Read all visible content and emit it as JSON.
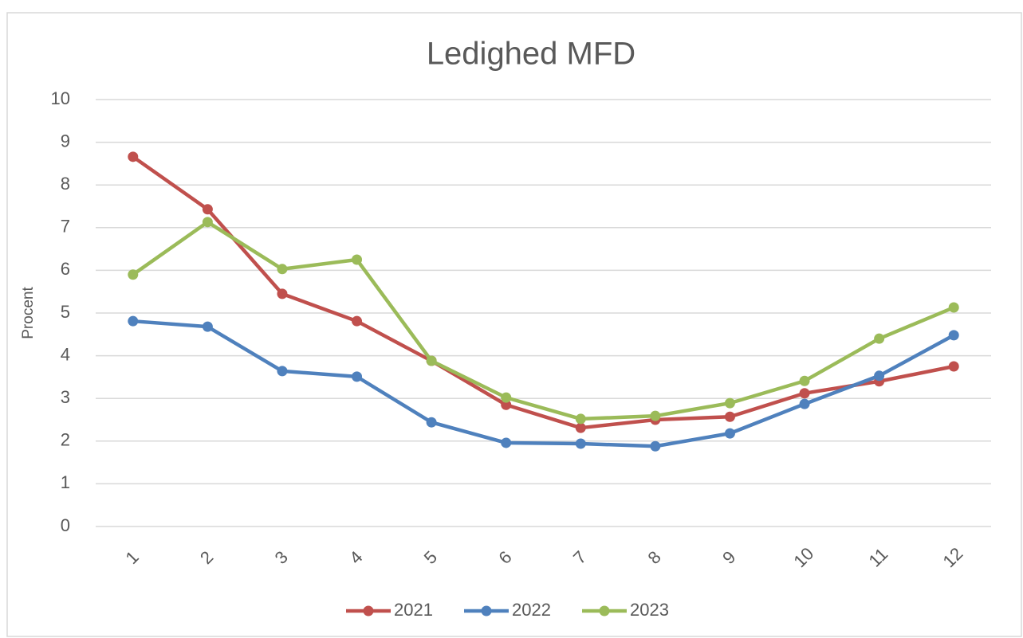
{
  "chart_data": {
    "type": "line",
    "title": "Ledighed MFD",
    "y_label": "Procent",
    "categories": [
      "1",
      "2",
      "3",
      "4",
      "5",
      "6",
      "7",
      "8",
      "9",
      "10",
      "11",
      "12"
    ],
    "series": [
      {
        "name": "2021",
        "color": "#c0504d",
        "values": [
          8.66,
          7.43,
          5.45,
          4.81,
          3.88,
          2.85,
          2.31,
          2.5,
          2.57,
          3.12,
          3.4,
          3.75
        ]
      },
      {
        "name": "2022",
        "color": "#4f81bd",
        "values": [
          4.81,
          4.68,
          3.64,
          3.51,
          2.44,
          1.96,
          1.94,
          1.88,
          2.18,
          2.87,
          3.53,
          4.48
        ]
      },
      {
        "name": "2023",
        "color": "#9bbb59",
        "values": [
          5.9,
          7.13,
          6.03,
          6.25,
          3.88,
          3.02,
          2.52,
          2.59,
          2.89,
          3.41,
          4.4,
          5.13
        ]
      }
    ],
    "ylim": [
      0,
      10
    ],
    "yticks": [
      0,
      1,
      2,
      3,
      4,
      5,
      6,
      7,
      8,
      9,
      10
    ],
    "grid": true,
    "legend": "bottom"
  }
}
